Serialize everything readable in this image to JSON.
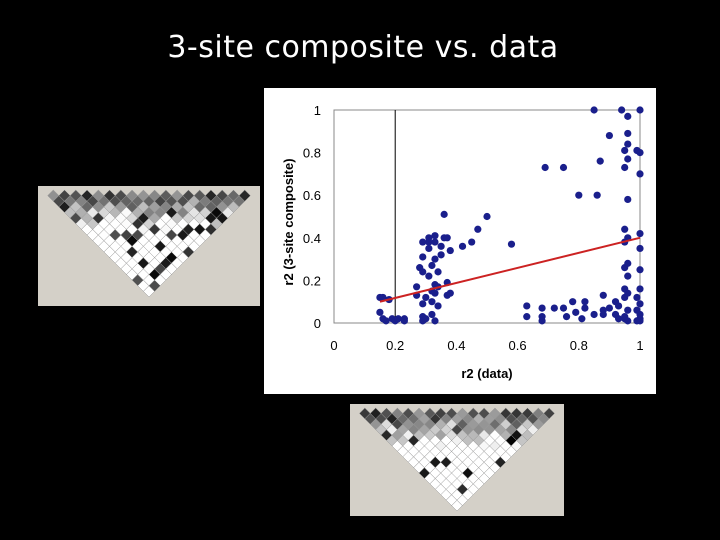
{
  "slide": {
    "title": "3-site composite vs. data"
  },
  "colors": {
    "background": "#000000",
    "point": "#1a1f8c",
    "trendline": "#cc2222",
    "ld_panel": "#d4d0c8"
  },
  "ld_heatmaps": [
    {
      "name": "ld-heatmap-left",
      "n": 18
    },
    {
      "name": "ld-heatmap-bottom",
      "n": 18
    }
  ],
  "chart_data": {
    "type": "scatter",
    "title": "",
    "xlabel": "r2 (data)",
    "ylabel": "r2 (3-site composite)",
    "xlim": [
      0,
      1
    ],
    "ylim": [
      0,
      1
    ],
    "xticks": [
      "0",
      "0.2",
      "0.4",
      "0.6",
      "0.8",
      "1"
    ],
    "xtick_values": [
      0,
      0.2,
      0.4,
      0.6,
      0.8,
      1
    ],
    "yticks": [
      "0",
      "0.2",
      "0.4",
      "0.6",
      "0.8",
      "1"
    ],
    "ytick_values": [
      0,
      0.2,
      0.4,
      0.6,
      0.8,
      1
    ],
    "grid": false,
    "reference_line": {
      "x": 0.2
    },
    "trendline": {
      "x": [
        0.15,
        1.0
      ],
      "y": [
        0.1,
        0.4
      ]
    },
    "points": [
      [
        0.15,
        0.12
      ],
      [
        0.16,
        0.12
      ],
      [
        0.15,
        0.05
      ],
      [
        0.16,
        0.02
      ],
      [
        0.17,
        0.01
      ],
      [
        0.18,
        0.11
      ],
      [
        0.19,
        0.02
      ],
      [
        0.2,
        0.01
      ],
      [
        0.21,
        0.02
      ],
      [
        0.23,
        0.02
      ],
      [
        0.23,
        0.01
      ],
      [
        0.27,
        0.13
      ],
      [
        0.27,
        0.17
      ],
      [
        0.28,
        0.26
      ],
      [
        0.29,
        0.38
      ],
      [
        0.29,
        0.31
      ],
      [
        0.29,
        0.24
      ],
      [
        0.29,
        0.09
      ],
      [
        0.29,
        0.03
      ],
      [
        0.29,
        0.01
      ],
      [
        0.3,
        0.02
      ],
      [
        0.3,
        0.12
      ],
      [
        0.31,
        0.22
      ],
      [
        0.31,
        0.35
      ],
      [
        0.31,
        0.38
      ],
      [
        0.31,
        0.4
      ],
      [
        0.32,
        0.04
      ],
      [
        0.32,
        0.1
      ],
      [
        0.32,
        0.15
      ],
      [
        0.32,
        0.27
      ],
      [
        0.33,
        0.3
      ],
      [
        0.33,
        0.38
      ],
      [
        0.33,
        0.41
      ],
      [
        0.33,
        0.18
      ],
      [
        0.33,
        0.14
      ],
      [
        0.33,
        0.01
      ],
      [
        0.34,
        0.08
      ],
      [
        0.34,
        0.17
      ],
      [
        0.34,
        0.24
      ],
      [
        0.35,
        0.32
      ],
      [
        0.35,
        0.36
      ],
      [
        0.36,
        0.4
      ],
      [
        0.36,
        0.51
      ],
      [
        0.37,
        0.19
      ],
      [
        0.37,
        0.13
      ],
      [
        0.37,
        0.4
      ],
      [
        0.38,
        0.34
      ],
      [
        0.38,
        0.14
      ],
      [
        0.42,
        0.36
      ],
      [
        0.45,
        0.38
      ],
      [
        0.47,
        0.44
      ],
      [
        0.5,
        0.5
      ],
      [
        0.58,
        0.37
      ],
      [
        0.63,
        0.08
      ],
      [
        0.63,
        0.03
      ],
      [
        0.68,
        0.07
      ],
      [
        0.68,
        0.03
      ],
      [
        0.68,
        0.01
      ],
      [
        0.69,
        0.73
      ],
      [
        0.72,
        0.07
      ],
      [
        0.75,
        0.73
      ],
      [
        0.75,
        0.07
      ],
      [
        0.76,
        0.03
      ],
      [
        0.78,
        0.1
      ],
      [
        0.79,
        0.05
      ],
      [
        0.8,
        0.6
      ],
      [
        0.81,
        0.02
      ],
      [
        0.82,
        0.07
      ],
      [
        0.82,
        0.1
      ],
      [
        0.86,
        0.6
      ],
      [
        0.87,
        0.76
      ],
      [
        0.88,
        0.06
      ],
      [
        0.88,
        0.13
      ],
      [
        0.88,
        0.04
      ],
      [
        0.9,
        0.07
      ],
      [
        0.92,
        0.04
      ],
      [
        0.92,
        0.1
      ],
      [
        0.93,
        0.02
      ],
      [
        0.93,
        0.08
      ],
      [
        0.94,
        1.0
      ],
      [
        0.95,
        0.81
      ],
      [
        0.95,
        0.73
      ],
      [
        0.95,
        0.44
      ],
      [
        0.95,
        0.38
      ],
      [
        0.95,
        0.26
      ],
      [
        0.95,
        0.16
      ],
      [
        0.95,
        0.12
      ],
      [
        0.95,
        0.03
      ],
      [
        0.95,
        0.02
      ],
      [
        0.96,
        0.97
      ],
      [
        0.96,
        0.89
      ],
      [
        0.96,
        0.84
      ],
      [
        0.96,
        0.77
      ],
      [
        0.96,
        0.58
      ],
      [
        0.96,
        0.4
      ],
      [
        0.96,
        0.28
      ],
      [
        0.96,
        0.22
      ],
      [
        0.96,
        0.14
      ],
      [
        0.96,
        0.06
      ],
      [
        0.96,
        0.01
      ],
      [
        0.99,
        0.81
      ],
      [
        0.99,
        0.06
      ],
      [
        0.99,
        0.01
      ],
      [
        1.0,
        1.0
      ],
      [
        1.0,
        0.8
      ],
      [
        1.0,
        0.7
      ],
      [
        1.0,
        0.42
      ],
      [
        1.0,
        0.35
      ],
      [
        1.0,
        0.25
      ],
      [
        1.0,
        0.16
      ],
      [
        1.0,
        0.09
      ],
      [
        1.0,
        0.04
      ],
      [
        1.0,
        0.02
      ],
      [
        1.0,
        0.01
      ],
      [
        0.99,
        0.12
      ],
      [
        0.85,
        1.0
      ],
      [
        0.9,
        0.88
      ],
      [
        0.85,
        0.04
      ]
    ]
  }
}
